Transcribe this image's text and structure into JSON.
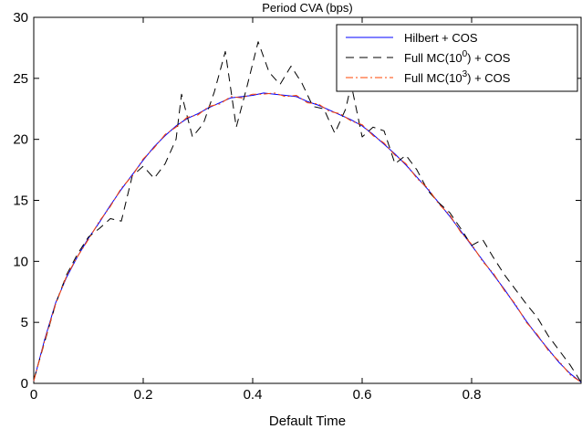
{
  "chart_data": {
    "type": "line",
    "title": "Period CVA (bps)",
    "xlabel": "Default Time",
    "ylabel": "",
    "xlim": [
      0,
      1
    ],
    "ylim": [
      0,
      30
    ],
    "xticks": [
      0,
      0.2,
      0.4,
      0.6,
      0.8
    ],
    "xtick_labels": [
      "0",
      "0.2",
      "0.4",
      "0.6",
      "0.8"
    ],
    "yticks": [
      0,
      5,
      10,
      15,
      20,
      25,
      30
    ],
    "ytick_labels": [
      "0",
      "5",
      "10",
      "15",
      "20",
      "25",
      "30"
    ],
    "grid": false,
    "legend_position": "top-right",
    "series": [
      {
        "name": "Hilbert + COS",
        "color": "#0000ff",
        "dash": "solid",
        "x": [
          0,
          0.02,
          0.04,
          0.06,
          0.08,
          0.1,
          0.12,
          0.14,
          0.16,
          0.18,
          0.2,
          0.22,
          0.24,
          0.26,
          0.28,
          0.3,
          0.32,
          0.34,
          0.36,
          0.38,
          0.4,
          0.42,
          0.44,
          0.46,
          0.48,
          0.5,
          0.52,
          0.54,
          0.56,
          0.58,
          0.6,
          0.62,
          0.64,
          0.66,
          0.68,
          0.7,
          0.72,
          0.74,
          0.76,
          0.78,
          0.8,
          0.82,
          0.84,
          0.86,
          0.88,
          0.9,
          0.92,
          0.94,
          0.96,
          0.98,
          1.0
        ],
        "y": [
          0.2,
          3.6,
          6.6,
          8.7,
          10.4,
          11.9,
          13.2,
          14.6,
          15.9,
          17.1,
          18.3,
          19.4,
          20.3,
          21.1,
          21.7,
          22.1,
          22.6,
          23.0,
          23.4,
          23.5,
          23.6,
          23.8,
          23.7,
          23.6,
          23.5,
          23.1,
          22.8,
          22.4,
          22.0,
          21.6,
          21.1,
          20.4,
          19.6,
          18.8,
          17.9,
          16.9,
          15.9,
          14.8,
          13.7,
          12.5,
          11.3,
          10.1,
          8.9,
          7.7,
          6.4,
          5.1,
          3.9,
          2.8,
          1.7,
          0.8,
          0.1
        ]
      },
      {
        "name": "Full MC(10^0) + COS",
        "legend_base": "Full MC(10",
        "legend_sup": "0",
        "legend_tail": ") + COS",
        "color": "#000000",
        "dash": "dashed",
        "x": [
          0,
          0.02,
          0.04,
          0.06,
          0.08,
          0.1,
          0.12,
          0.14,
          0.16,
          0.18,
          0.2,
          0.22,
          0.24,
          0.26,
          0.27,
          0.29,
          0.31,
          0.33,
          0.35,
          0.37,
          0.39,
          0.41,
          0.43,
          0.45,
          0.47,
          0.49,
          0.51,
          0.53,
          0.55,
          0.57,
          0.58,
          0.6,
          0.62,
          0.64,
          0.66,
          0.68,
          0.7,
          0.72,
          0.74,
          0.76,
          0.78,
          0.8,
          0.82,
          0.84,
          0.86,
          0.88,
          0.9,
          0.92,
          0.94,
          0.96,
          0.98,
          1.0
        ],
        "y": [
          0.3,
          3.4,
          6.5,
          8.9,
          10.6,
          12.0,
          12.7,
          13.5,
          13.3,
          17.0,
          17.8,
          16.8,
          18.0,
          20.0,
          23.7,
          20.2,
          21.3,
          23.9,
          27.2,
          21.0,
          24.4,
          28.0,
          25.5,
          24.5,
          26.0,
          24.6,
          22.7,
          22.5,
          20.5,
          22.5,
          24.5,
          20.2,
          21.0,
          20.7,
          18.0,
          18.7,
          17.5,
          15.8,
          14.8,
          14.0,
          12.7,
          11.3,
          11.8,
          10.3,
          8.9,
          7.7,
          6.5,
          5.4,
          3.9,
          2.7,
          1.5,
          0.1
        ]
      },
      {
        "name": "Full MC(10^3) + COS",
        "legend_base": "Full MC(10",
        "legend_sup": "3",
        "legend_tail": ") + COS",
        "color": "#ff4500",
        "dash": "dashdot",
        "x": [
          0,
          0.02,
          0.04,
          0.06,
          0.08,
          0.1,
          0.12,
          0.14,
          0.16,
          0.18,
          0.2,
          0.22,
          0.24,
          0.26,
          0.28,
          0.3,
          0.32,
          0.34,
          0.36,
          0.38,
          0.4,
          0.42,
          0.44,
          0.46,
          0.48,
          0.5,
          0.52,
          0.54,
          0.56,
          0.58,
          0.6,
          0.62,
          0.64,
          0.66,
          0.68,
          0.7,
          0.72,
          0.74,
          0.76,
          0.78,
          0.8,
          0.82,
          0.84,
          0.86,
          0.88,
          0.9,
          0.92,
          0.94,
          0.96,
          0.98,
          1.0
        ],
        "y": [
          0.2,
          3.5,
          6.5,
          8.8,
          10.4,
          11.8,
          13.3,
          14.5,
          16.0,
          17.0,
          18.4,
          19.3,
          20.4,
          21.0,
          21.8,
          22.0,
          22.7,
          22.9,
          23.5,
          23.4,
          23.7,
          23.7,
          23.8,
          23.5,
          23.6,
          23.0,
          22.9,
          22.3,
          22.1,
          21.5,
          21.2,
          20.3,
          19.7,
          18.7,
          18.0,
          16.8,
          16.0,
          14.7,
          13.8,
          12.4,
          11.4,
          10.0,
          9.0,
          7.6,
          6.5,
          5.0,
          4.0,
          2.7,
          1.8,
          0.7,
          0.1
        ]
      }
    ]
  }
}
